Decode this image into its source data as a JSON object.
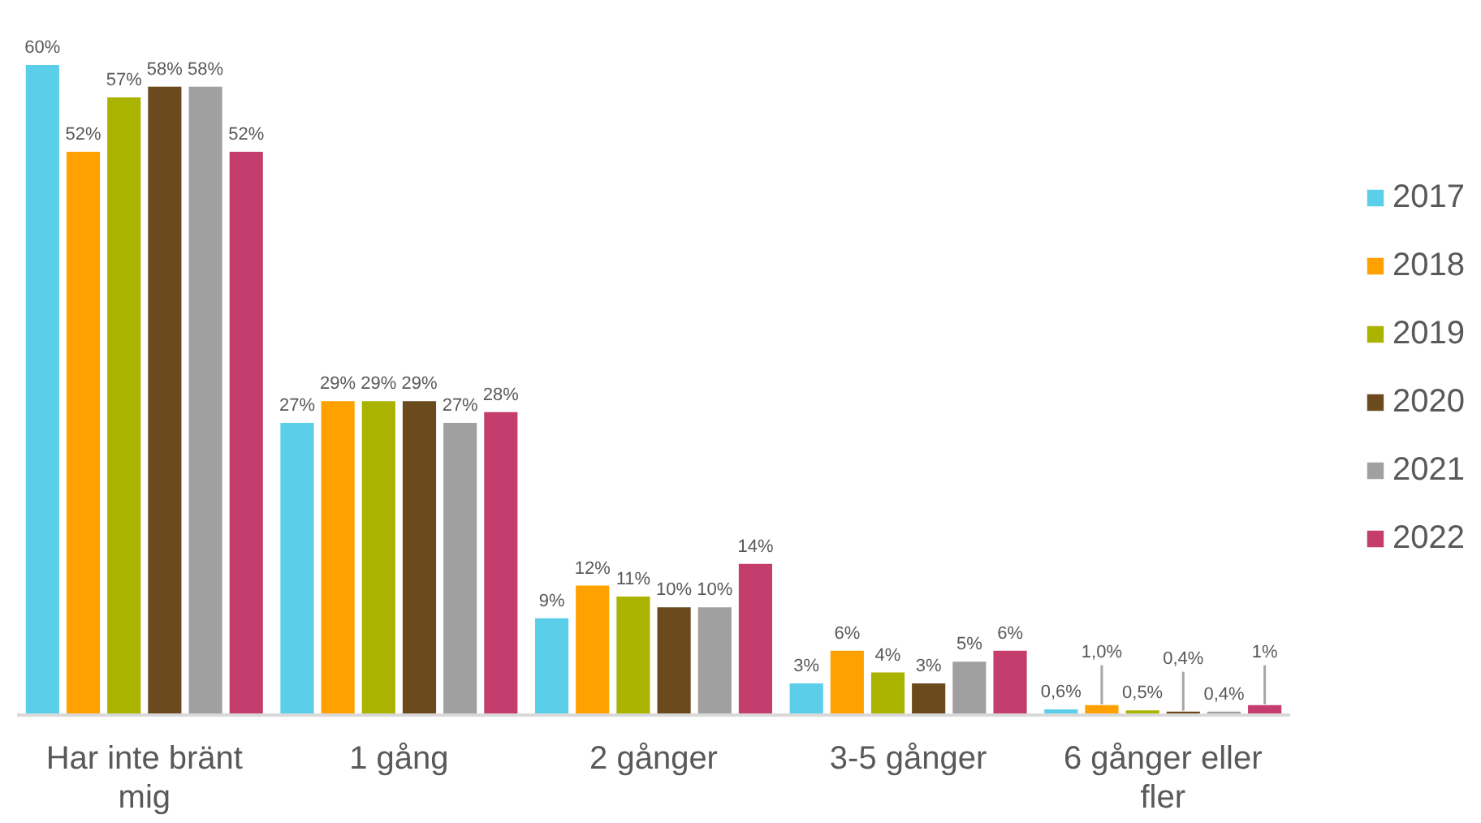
{
  "chart_data": {
    "type": "bar",
    "categories": [
      "Har inte bränt mig",
      "1 gång",
      "2 gånger",
      "3-5 gånger",
      "6 gånger eller fler"
    ],
    "series": [
      {
        "name": "2017",
        "color": "#5bcfea",
        "values": [
          60,
          27,
          9,
          3,
          0.6
        ],
        "value_labels": [
          "60%",
          "27%",
          "9%",
          "3%",
          "0,6%"
        ]
      },
      {
        "name": "2018",
        "color": "#ffa100",
        "values": [
          52,
          29,
          12,
          6,
          1.0
        ],
        "value_labels": [
          "52%",
          "29%",
          "12%",
          "6%",
          "1,0%"
        ]
      },
      {
        "name": "2019",
        "color": "#a9b300",
        "values": [
          57,
          29,
          11,
          4,
          0.5
        ],
        "value_labels": [
          "57%",
          "29%",
          "11%",
          "4%",
          "0,5%"
        ]
      },
      {
        "name": "2020",
        "color": "#6b4a1e",
        "values": [
          58,
          29,
          10,
          3,
          0.4
        ],
        "value_labels": [
          "58%",
          "29%",
          "10%",
          "3%",
          "0,4%"
        ]
      },
      {
        "name": "2021",
        "color": "#a0a0a0",
        "values": [
          58,
          27,
          10,
          5,
          0.4
        ],
        "value_labels": [
          "58%",
          "27%",
          "10%",
          "5%",
          "0,4%"
        ]
      },
      {
        "name": "2022",
        "color": "#c43d6d",
        "values": [
          52,
          28,
          14,
          6,
          1
        ],
        "value_labels": [
          "52%",
          "28%",
          "14%",
          "6%",
          "1%"
        ]
      }
    ],
    "tick_labels": "x",
    "grid": false,
    "legend": "right"
  }
}
